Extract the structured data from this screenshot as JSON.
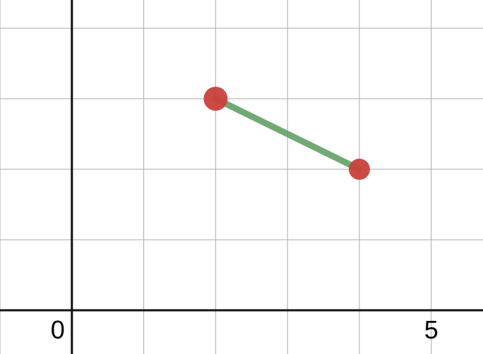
{
  "chart_data": {
    "type": "line",
    "xlim": [
      -1.0,
      5.72
    ],
    "ylim": [
      -0.62,
      4.4
    ],
    "grid": true,
    "grid_step": 1,
    "tick_labels": [
      {
        "axis": "x",
        "value": 0,
        "text": "0"
      },
      {
        "axis": "x",
        "value": 5,
        "text": "5"
      }
    ],
    "series": [
      {
        "points": [
          {
            "x": 2,
            "y": 3
          },
          {
            "x": 4,
            "y": 2
          }
        ],
        "line_color": "#6aa56e",
        "point_color": "#c9403b"
      }
    ]
  }
}
